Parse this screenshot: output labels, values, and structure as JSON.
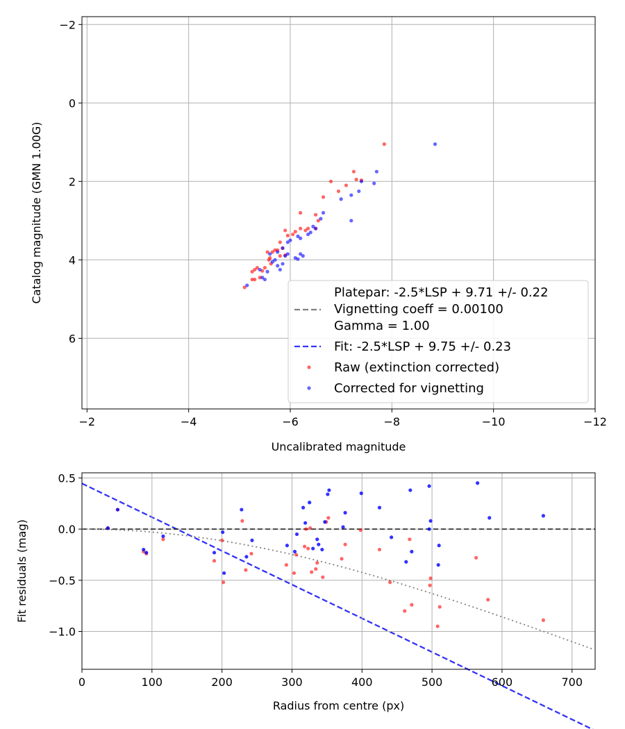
{
  "chart_data": [
    {
      "type": "scatter",
      "xlabel": "Uncalibrated magnitude",
      "ylabel": "Catalog magnitude (GMN 1.00G)",
      "xlim": [
        -1.9,
        -12.0
      ],
      "ylim": [
        7.8,
        -2.2
      ],
      "x_ticks": [
        -2,
        -4,
        -6,
        -8,
        -10,
        -12
      ],
      "x_tick_labels": [
        "−2",
        "−4",
        "−6",
        "−8",
        "−10",
        "−12"
      ],
      "y_ticks": [
        -2,
        0,
        2,
        4,
        6
      ],
      "y_tick_labels": [
        "−2",
        "0",
        "2",
        "4",
        "6"
      ],
      "grid": true,
      "legend": {
        "position": "lower-right",
        "platepar_text": "Platepar: -2.5*LSP + 9.71 +/- 0.22",
        "vignetting_text": "Vignetting coeff = 0.00100",
        "gamma_text": "Gamma = 1.00",
        "fit_text": "Fit: -2.5*LSP + 9.75 +/- 0.23",
        "raw_text": "Raw (extinction corrected)",
        "corrected_text": "Corrected for vignetting"
      },
      "lines": [
        {
          "name": "Platepar",
          "style": "dashed",
          "color": "#808080",
          "intercept": 9.71
        },
        {
          "name": "Fit",
          "style": "dashed",
          "color": "#3333ff",
          "intercept": 9.75
        }
      ],
      "series": [
        {
          "name": "Raw (extinction corrected)",
          "color": "#ff0000",
          "points": [
            [
              -7.85,
              1.05
            ],
            [
              -7.25,
              1.75
            ],
            [
              -7.3,
              1.95
            ],
            [
              -7.4,
              1.97
            ],
            [
              -7.1,
              2.1
            ],
            [
              -6.95,
              2.25
            ],
            [
              -6.8,
              2.0
            ],
            [
              -6.65,
              2.4
            ],
            [
              -6.5,
              2.85
            ],
            [
              -6.2,
              2.8
            ],
            [
              -6.55,
              3.0
            ],
            [
              -6.5,
              3.2
            ],
            [
              -6.35,
              3.2
            ],
            [
              -6.3,
              3.25
            ],
            [
              -6.2,
              3.2
            ],
            [
              -6.1,
              3.28
            ],
            [
              -6.05,
              3.35
            ],
            [
              -5.9,
              3.25
            ],
            [
              -5.95,
              3.38
            ],
            [
              -5.8,
              3.55
            ],
            [
              -5.85,
              3.7
            ],
            [
              -5.75,
              3.75
            ],
            [
              -5.7,
              3.75
            ],
            [
              -5.65,
              3.8
            ],
            [
              -5.55,
              3.8
            ],
            [
              -5.6,
              3.95
            ],
            [
              -5.58,
              4.0
            ],
            [
              -5.62,
              4.1
            ],
            [
              -5.5,
              4.2
            ],
            [
              -5.45,
              4.28
            ],
            [
              -5.35,
              4.2
            ],
            [
              -5.3,
              4.25
            ],
            [
              -5.25,
              4.3
            ],
            [
              -5.4,
              4.45
            ],
            [
              -5.3,
              4.5
            ],
            [
              -5.25,
              4.5
            ],
            [
              -5.1,
              4.7
            ],
            [
              -5.9,
              3.88
            ],
            [
              -5.8,
              3.9
            ]
          ]
        },
        {
          "name": "Corrected for vignetting",
          "color": "#0000ff",
          "points": [
            [
              -8.85,
              1.05
            ],
            [
              -7.7,
              1.75
            ],
            [
              -7.65,
              2.05
            ],
            [
              -7.4,
              2.0
            ],
            [
              -7.35,
              2.25
            ],
            [
              -7.2,
              2.35
            ],
            [
              -7.0,
              2.45
            ],
            [
              -7.2,
              3.0
            ],
            [
              -6.6,
              2.95
            ],
            [
              -6.65,
              2.8
            ],
            [
              -6.45,
              3.15
            ],
            [
              -6.5,
              3.2
            ],
            [
              -6.4,
              3.3
            ],
            [
              -6.35,
              3.35
            ],
            [
              -6.2,
              3.45
            ],
            [
              -6.15,
              3.4
            ],
            [
              -6.0,
              3.5
            ],
            [
              -5.95,
              3.55
            ],
            [
              -6.25,
              3.9
            ],
            [
              -6.2,
              3.85
            ],
            [
              -6.1,
              3.95
            ],
            [
              -6.15,
              3.98
            ],
            [
              -5.95,
              3.85
            ],
            [
              -5.9,
              3.9
            ],
            [
              -5.85,
              4.1
            ],
            [
              -5.8,
              4.25
            ],
            [
              -5.75,
              4.15
            ],
            [
              -5.7,
              4.0
            ],
            [
              -5.6,
              3.85
            ],
            [
              -5.65,
              4.05
            ],
            [
              -5.55,
              4.3
            ],
            [
              -5.5,
              4.5
            ],
            [
              -5.45,
              4.45
            ],
            [
              -5.4,
              4.25
            ],
            [
              -5.15,
              4.65
            ],
            [
              -5.85,
              3.7
            ],
            [
              -5.75,
              3.8
            ]
          ]
        }
      ]
    },
    {
      "type": "scatter",
      "xlabel": "Radius from centre (px)",
      "ylabel": "Fit residuals (mag)",
      "xlim": [
        0,
        733
      ],
      "ylim": [
        -1.37,
        0.55
      ],
      "x_ticks": [
        0,
        100,
        200,
        300,
        400,
        500,
        600,
        700
      ],
      "x_tick_labels": [
        "0",
        "100",
        "200",
        "300",
        "400",
        "500",
        "600",
        "700"
      ],
      "y_ticks": [
        0.5,
        0.0,
        -0.5,
        -1.0
      ],
      "y_tick_labels": [
        "0.5",
        "0.0",
        "−0.5",
        "−1.0"
      ],
      "grid": true,
      "reference_line": {
        "y": 0.0,
        "style": "dashed",
        "color": "#000000"
      },
      "vignetting_curve": {
        "style": "dotted",
        "color": "#808080",
        "coeff": 0.001,
        "xmax": 733
      },
      "series": [
        {
          "name": "Raw (extinction corrected)",
          "color": "#ff0000",
          "points": [
            [
              37,
              0.01
            ],
            [
              51,
              0.19
            ],
            [
              88,
              -0.22
            ],
            [
              92,
              -0.24
            ],
            [
              116,
              -0.1
            ],
            [
              189,
              -0.31
            ],
            [
              200,
              -0.11
            ],
            [
              202,
              -0.52
            ],
            [
              229,
              0.08
            ],
            [
              234,
              -0.4
            ],
            [
              242,
              -0.24
            ],
            [
              292,
              -0.35
            ],
            [
              303,
              -0.43
            ],
            [
              306,
              -0.25
            ],
            [
              318,
              -0.17
            ],
            [
              320,
              0.0
            ],
            [
              323,
              -0.19
            ],
            [
              326,
              0.01
            ],
            [
              328,
              -0.42
            ],
            [
              334,
              -0.39
            ],
            [
              336,
              -0.33
            ],
            [
              344,
              -0.47
            ],
            [
              349,
              0.07
            ],
            [
              352,
              0.11
            ],
            [
              376,
              -0.15
            ],
            [
              371,
              -0.29
            ],
            [
              398,
              -0.01
            ],
            [
              425,
              -0.2
            ],
            [
              440,
              -0.52
            ],
            [
              461,
              -0.8
            ],
            [
              468,
              -0.1
            ],
            [
              471,
              -0.74
            ],
            [
              497,
              -0.55
            ],
            [
              498,
              -0.48
            ],
            [
              508,
              -0.95
            ],
            [
              511,
              -0.76
            ],
            [
              563,
              -0.28
            ],
            [
              580,
              -0.69
            ],
            [
              659,
              -0.89
            ]
          ]
        },
        {
          "name": "Corrected for vignetting",
          "color": "#0000ff",
          "points": [
            [
              37,
              0.01
            ],
            [
              51,
              0.19
            ],
            [
              88,
              -0.2
            ],
            [
              92,
              -0.23
            ],
            [
              116,
              -0.07
            ],
            [
              189,
              -0.23
            ],
            [
              201,
              -0.03
            ],
            [
              203,
              -0.43
            ],
            [
              228,
              0.19
            ],
            [
              235,
              -0.27
            ],
            [
              243,
              -0.11
            ],
            [
              293,
              -0.16
            ],
            [
              304,
              -0.22
            ],
            [
              307,
              -0.05
            ],
            [
              316,
              0.21
            ],
            [
              319,
              0.06
            ],
            [
              325,
              0.26
            ],
            [
              330,
              -0.19
            ],
            [
              336,
              -0.1
            ],
            [
              338,
              -0.15
            ],
            [
              343,
              -0.2
            ],
            [
              347,
              0.07
            ],
            [
              351,
              0.34
            ],
            [
              353,
              0.38
            ],
            [
              373,
              0.02
            ],
            [
              376,
              0.16
            ],
            [
              399,
              0.35
            ],
            [
              425,
              0.21
            ],
            [
              442,
              -0.08
            ],
            [
              463,
              -0.32
            ],
            [
              469,
              0.38
            ],
            [
              471,
              -0.22
            ],
            [
              496,
              0.42
            ],
            [
              498,
              0.08
            ],
            [
              496,
              0.0
            ],
            [
              509,
              -0.35
            ],
            [
              510,
              -0.16
            ],
            [
              565,
              0.45
            ],
            [
              582,
              0.11
            ],
            [
              659,
              0.13
            ]
          ]
        }
      ]
    }
  ]
}
